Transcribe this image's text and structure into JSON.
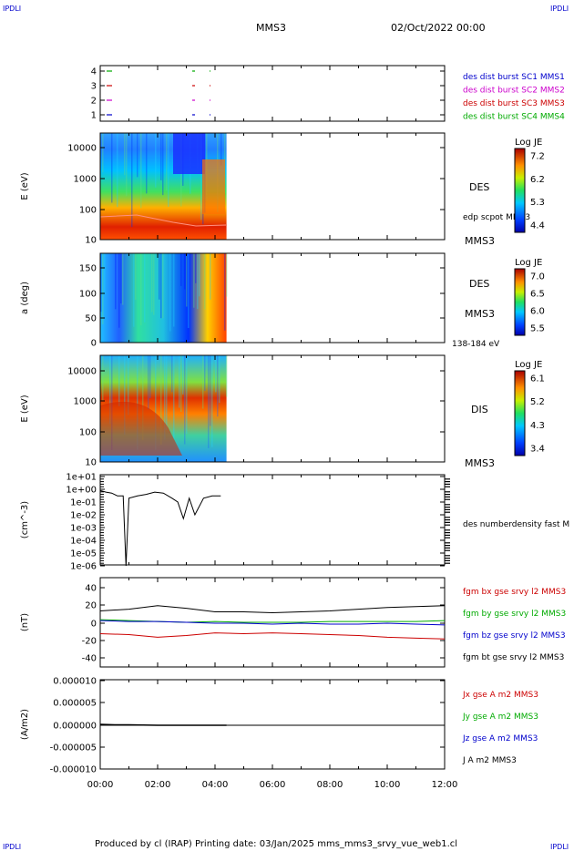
{
  "header": {
    "corner_tl": "IPDLI",
    "corner_tr": "IPDLI",
    "corner_bl": "IPDLI",
    "corner_br": "IPDLI",
    "spacecraft": "MMS3",
    "date": "02/Oct/2022 00:00"
  },
  "footer": {
    "text": "Produced by cl (IRAP)   Printing date: 03/Jan/2025   mms_mms3_srvy_vue_web1.cl"
  },
  "colors": {
    "blue": "#0000cc",
    "magenta": "#cc00cc",
    "red": "#cc0000",
    "green": "#00aa00",
    "black": "#000000"
  },
  "chart_data": [
    {
      "type": "scatter",
      "ylim": [
        1,
        4
      ],
      "ticks": [
        "1",
        "2",
        "3",
        "4"
      ],
      "legend": [
        {
          "label": "des dist burst SC1 MMS1",
          "color": "#0000cc"
        },
        {
          "label": "des dist burst SC2 MMS2",
          "color": "#cc00cc"
        },
        {
          "label": "des dist burst SC3 MMS3",
          "color": "#cc0000"
        },
        {
          "label": "des dist burst SC4 MMS4",
          "color": "#00aa00"
        }
      ]
    },
    {
      "type": "heatmap",
      "ylabel": "E (eV)",
      "yscale": "log",
      "ticks": [
        "10000",
        "1000",
        "100",
        "10"
      ],
      "label": "DES",
      "sublabel": "edp scpot MMS3",
      "sc_label": "MMS3",
      "cbar_title": "Log JE",
      "cbar_ticks": [
        "7.2",
        "6.2",
        "5.3",
        "4.4"
      ],
      "data_extent_hours": [
        0,
        4.4
      ]
    },
    {
      "type": "heatmap",
      "ylabel": "a (deg)",
      "ylim": [
        0,
        180
      ],
      "ticks": [
        "150",
        "100",
        "50",
        "0"
      ],
      "label": "DES",
      "sc_label": "MMS3",
      "energy_range": "138-184 eV",
      "cbar_title": "Log JE",
      "cbar_ticks": [
        "7.0",
        "6.5",
        "6.0",
        "5.5"
      ],
      "data_extent_hours": [
        0,
        4.4
      ]
    },
    {
      "type": "heatmap",
      "ylabel": "E (eV)",
      "yscale": "log",
      "ticks": [
        "10000",
        "1000",
        "100",
        "10"
      ],
      "label": "DIS",
      "sc_label": "MMS3",
      "cbar_title": "Log JE",
      "cbar_ticks": [
        "6.1",
        "5.2",
        "4.3",
        "3.4"
      ],
      "data_extent_hours": [
        0,
        4.4
      ]
    },
    {
      "type": "line",
      "ylabel": "(cm^-3)",
      "yscale": "log",
      "ticks": [
        "1e+01",
        "1e+00",
        "1e-01",
        "1e-02",
        "1e-03",
        "1e-04",
        "1e-05",
        "1e-06"
      ],
      "legend": [
        {
          "label": "des numberdensity fast M",
          "color": "#000000"
        }
      ],
      "series_hours": [
        0,
        0.2,
        0.4,
        0.6,
        0.8,
        0.9,
        1.0,
        1.3,
        1.6,
        1.9,
        2.2,
        2.5,
        2.7,
        2.9,
        3.1,
        3.3,
        3.6,
        3.9,
        4.2
      ],
      "series_values": [
        0.8,
        0.6,
        0.5,
        0.3,
        0.3,
        1e-06,
        0.2,
        0.3,
        0.4,
        0.6,
        0.5,
        0.2,
        0.1,
        0.005,
        0.2,
        0.01,
        0.2,
        0.3,
        0.3
      ]
    },
    {
      "type": "line",
      "ylabel": "(nT)",
      "ylim": [
        -45,
        45
      ],
      "ticks": [
        "40",
        "20",
        "0",
        "-20",
        "-40"
      ],
      "x_hours": [
        0,
        1,
        2,
        3,
        4,
        5,
        6,
        7,
        8,
        9,
        10,
        11,
        12
      ],
      "series": [
        {
          "name": "fgm bx gse srvy l2 MMS3",
          "color": "#cc0000",
          "values": [
            -12,
            -13,
            -16,
            -14,
            -11,
            -12,
            -11,
            -12,
            -13,
            -14,
            -16,
            -17,
            -18
          ]
        },
        {
          "name": "fgm by gse srvy l2 MMS3",
          "color": "#00aa00",
          "values": [
            4,
            3,
            2,
            1,
            2,
            1,
            1,
            1,
            2,
            2,
            2,
            2,
            3
          ]
        },
        {
          "name": "fgm bz gse srvy l2 MMS3",
          "color": "#0000cc",
          "values": [
            3,
            2,
            2,
            1,
            0,
            0,
            -1,
            0,
            -1,
            -1,
            0,
            -1,
            -2
          ]
        },
        {
          "name": "fgm bt gse srvy l2 MMS3",
          "color": "#000000",
          "values": [
            14,
            16,
            20,
            17,
            13,
            13,
            12,
            13,
            14,
            16,
            18,
            19,
            20
          ]
        }
      ]
    },
    {
      "type": "line",
      "ylabel": "(A/m2)",
      "ylim": [
        -1e-05,
        1e-05
      ],
      "ticks": [
        "0.000010",
        "0.000005",
        "0.000000",
        "-0.000005",
        "-0.000010"
      ],
      "series": [
        {
          "name": "Jx gse A m2 MMS3",
          "color": "#cc0000"
        },
        {
          "name": "Jy gse A m2 MMS3",
          "color": "#00aa00"
        },
        {
          "name": "Jz gse A m2 MMS3",
          "color": "#0000cc"
        },
        {
          "name": "J A m2 MMS3",
          "color": "#000000"
        }
      ],
      "x_hours": [
        0,
        0.5,
        1,
        2,
        3,
        4,
        4.4
      ],
      "values": [
        2e-07,
        1e-07,
        1e-07,
        0.0,
        0.0,
        0.0,
        0.0
      ]
    }
  ],
  "xaxis": {
    "range_hours": [
      0,
      12
    ],
    "ticks": [
      "00:00",
      "02:00",
      "04:00",
      "06:00",
      "08:00",
      "10:00",
      "12:00"
    ]
  }
}
